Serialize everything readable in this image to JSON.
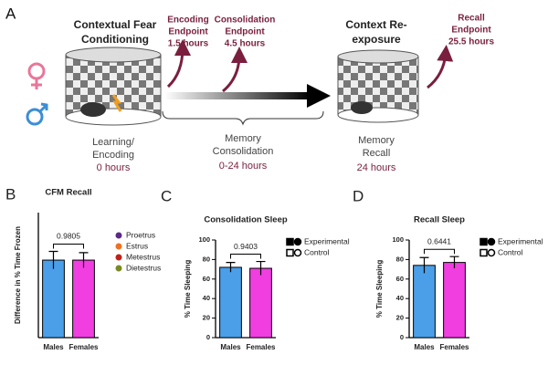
{
  "diagram": {
    "panel": "A",
    "learning_title": [
      "Contextual Fear",
      "Conditioning"
    ],
    "learning_label": [
      "Learning/",
      "Encoding"
    ],
    "learning_time": "0 hours",
    "encoding_endpoint": [
      "Encoding",
      "Endpoint",
      "1.5 hours"
    ],
    "consolidation_endpoint": [
      "Consolidation",
      "Endpoint",
      "4.5 hours"
    ],
    "consolidation_label": [
      "Memory",
      "Consolidation"
    ],
    "consolidation_time": "0-24 hours",
    "reexposure_title": [
      "Context Re-",
      "exposure"
    ],
    "recall_label": [
      "Memory",
      "Recall"
    ],
    "recall_time": "24 hours",
    "recall_endpoint": [
      "Recall",
      "Endpoint",
      "25.5 hours"
    ]
  },
  "chart_data": [
    {
      "type": "bar",
      "panel": "B",
      "title": "CFM Recall",
      "ylabel": "Difference in % Time Frozen",
      "categories": [
        "Males",
        "Females"
      ],
      "values": [
        62,
        62
      ],
      "errors": [
        7,
        6
      ],
      "colors": [
        "#4a9fe8",
        "#f03ee0"
      ],
      "ylim": [
        0,
        100
      ],
      "annotation": "0.9805",
      "legend": [
        {
          "name": "Proetrus",
          "color": "#5b2a86"
        },
        {
          "name": "Estrus",
          "color": "#f07020"
        },
        {
          "name": "Metestrus",
          "color": "#c0201a"
        },
        {
          "name": "Dietestrus",
          "color": "#7a8a20"
        }
      ]
    },
    {
      "type": "bar",
      "panel": "C",
      "title": "Consolidation Sleep",
      "ylabel": "% Time Sleeping",
      "categories": [
        "Males",
        "Females"
      ],
      "values": [
        72,
        71
      ],
      "errors": [
        5,
        7
      ],
      "colors": [
        "#4a9fe8",
        "#f03ee0"
      ],
      "ylim": [
        0,
        100
      ],
      "yticks": [
        0,
        20,
        40,
        60,
        80,
        100
      ],
      "annotation": "0.9403",
      "legend": [
        {
          "name": "Experimental",
          "style": "filled"
        },
        {
          "name": "Control",
          "style": "open"
        }
      ]
    },
    {
      "type": "bar",
      "panel": "D",
      "title": "Recall Sleep",
      "ylabel": "% Time Sleeping",
      "categories": [
        "Males",
        "Females"
      ],
      "values": [
        74,
        77
      ],
      "errors": [
        8,
        6
      ],
      "colors": [
        "#4a9fe8",
        "#f03ee0"
      ],
      "ylim": [
        0,
        100
      ],
      "yticks": [
        0,
        20,
        40,
        60,
        80,
        100
      ],
      "annotation": "0.6441",
      "legend": [
        {
          "name": "Experimental",
          "style": "filled"
        },
        {
          "name": "Control",
          "style": "open"
        }
      ]
    }
  ]
}
